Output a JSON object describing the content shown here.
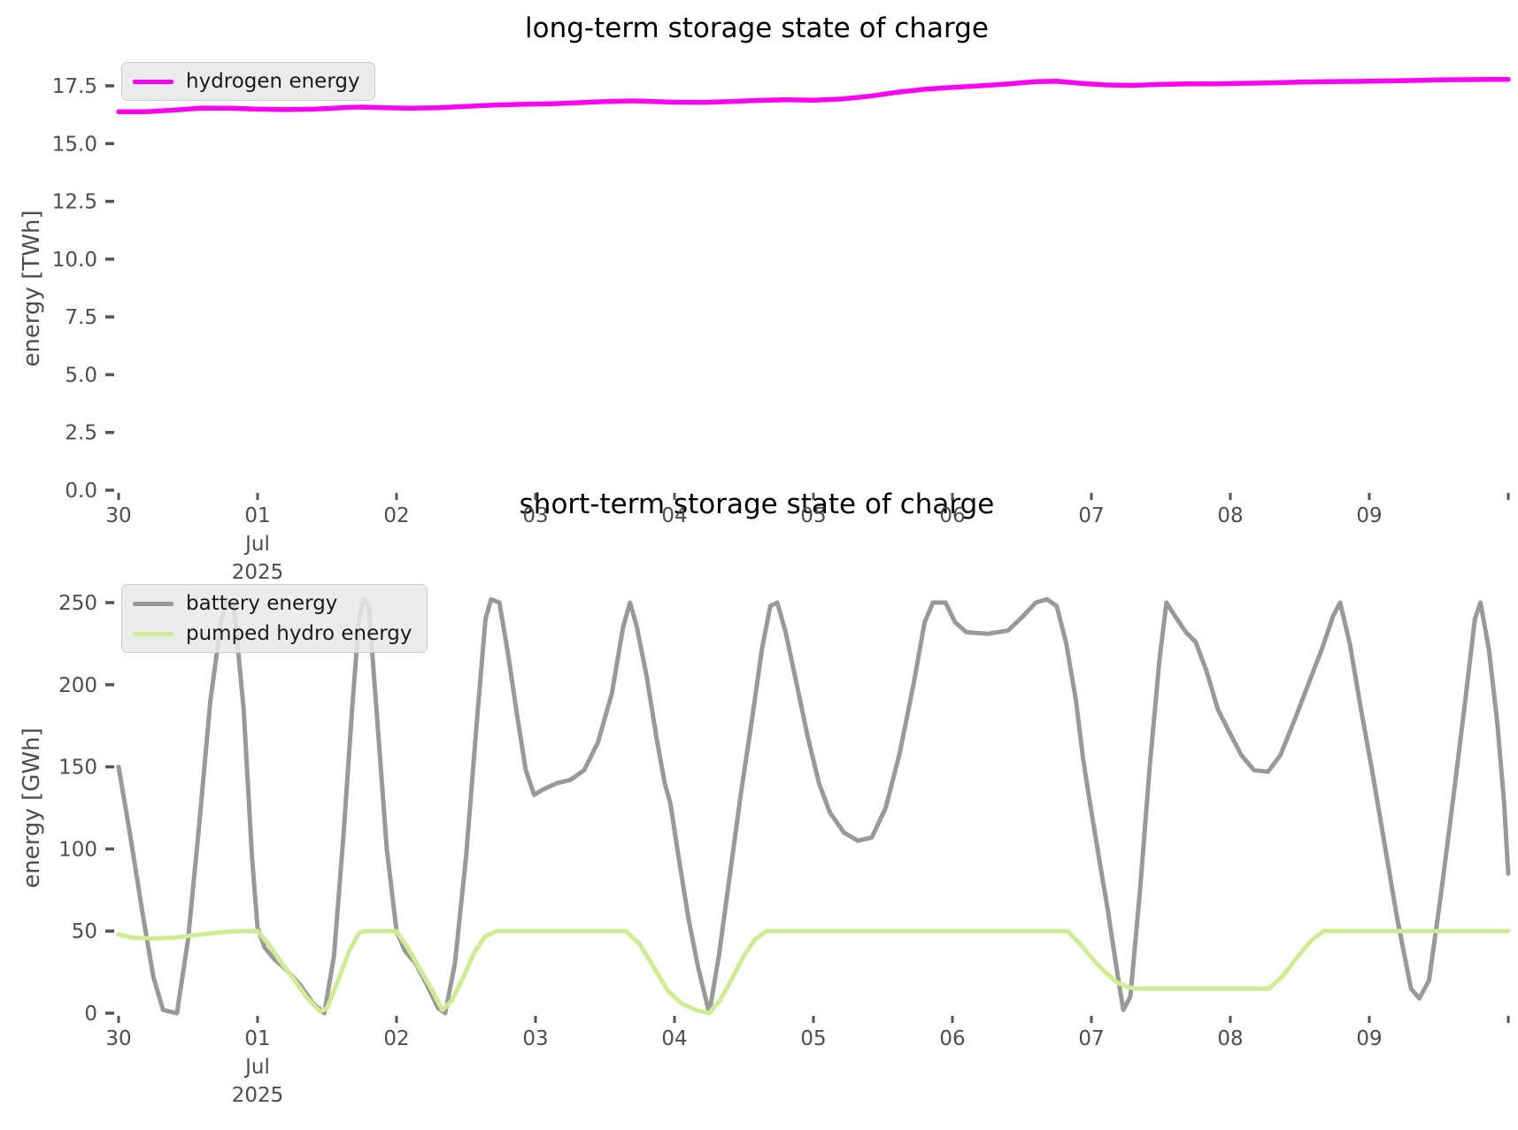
{
  "figure": {
    "background": "#ffffff"
  },
  "x_axis": {
    "tick_labels": [
      "30",
      "01",
      "02",
      "03",
      "04",
      "05",
      "06",
      "07",
      "08",
      "09",
      ""
    ],
    "month_label": "Jul",
    "year_label": "2025",
    "month_under_tick": "01"
  },
  "chart_data": [
    {
      "type": "line",
      "title": "long-term storage state of charge",
      "ylabel": "energy [TWh]",
      "ylim": [
        0.0,
        17.5
      ],
      "y_tick_labels": [
        "0.0",
        "2.5",
        "5.0",
        "7.5",
        "10.0",
        "12.5",
        "15.0",
        "17.5"
      ],
      "y_tick_values": [
        0.0,
        2.5,
        5.0,
        7.5,
        10.0,
        12.5,
        15.0,
        17.5
      ],
      "x_unit": "days since Jun 30 2025",
      "grid": false,
      "legend_position": "upper-left",
      "series": [
        {
          "name": "hydrogen energy",
          "color": "#ff00f2",
          "width": 5.5,
          "points": [
            [
              0,
              16.38
            ],
            [
              0.2,
              16.38
            ],
            [
              0.4,
              16.45
            ],
            [
              0.6,
              16.54
            ],
            [
              0.8,
              16.53
            ],
            [
              1.0,
              16.49
            ],
            [
              1.2,
              16.47
            ],
            [
              1.4,
              16.49
            ],
            [
              1.6,
              16.55
            ],
            [
              1.75,
              16.58
            ],
            [
              1.9,
              16.55
            ],
            [
              2.1,
              16.53
            ],
            [
              2.3,
              16.55
            ],
            [
              2.5,
              16.61
            ],
            [
              2.7,
              16.67
            ],
            [
              2.9,
              16.7
            ],
            [
              3.1,
              16.72
            ],
            [
              3.3,
              16.77
            ],
            [
              3.5,
              16.82
            ],
            [
              3.7,
              16.85
            ],
            [
              3.85,
              16.82
            ],
            [
              4.0,
              16.79
            ],
            [
              4.2,
              16.78
            ],
            [
              4.4,
              16.82
            ],
            [
              4.6,
              16.87
            ],
            [
              4.8,
              16.9
            ],
            [
              5.0,
              16.88
            ],
            [
              5.2,
              16.93
            ],
            [
              5.4,
              17.05
            ],
            [
              5.6,
              17.22
            ],
            [
              5.8,
              17.35
            ],
            [
              6.0,
              17.43
            ],
            [
              6.2,
              17.5
            ],
            [
              6.4,
              17.58
            ],
            [
              6.6,
              17.68
            ],
            [
              6.75,
              17.7
            ],
            [
              6.9,
              17.62
            ],
            [
              7.1,
              17.54
            ],
            [
              7.3,
              17.52
            ],
            [
              7.5,
              17.56
            ],
            [
              7.7,
              17.59
            ],
            [
              7.9,
              17.59
            ],
            [
              8.1,
              17.61
            ],
            [
              8.3,
              17.63
            ],
            [
              8.5,
              17.66
            ],
            [
              8.7,
              17.68
            ],
            [
              8.9,
              17.69
            ],
            [
              9.1,
              17.71
            ],
            [
              9.3,
              17.73
            ],
            [
              9.5,
              17.76
            ],
            [
              9.7,
              17.77
            ],
            [
              9.85,
              17.78
            ],
            [
              10,
              17.78
            ]
          ]
        }
      ]
    },
    {
      "type": "line",
      "title": "short-term storage state of charge",
      "ylabel": "energy [GWh]",
      "ylim": [
        0,
        250
      ],
      "y_tick_labels": [
        "0",
        "50",
        "100",
        "150",
        "200",
        "250"
      ],
      "y_tick_values": [
        0,
        50,
        100,
        150,
        200,
        250
      ],
      "x_unit": "days since Jun 30 2025",
      "grid": false,
      "legend_position": "upper-left",
      "series": [
        {
          "name": "battery energy",
          "color": "#999999",
          "width": 5,
          "points": [
            [
              0,
              150
            ],
            [
              0.08,
              110
            ],
            [
              0.17,
              62
            ],
            [
              0.25,
              22
            ],
            [
              0.32,
              2
            ],
            [
              0.42,
              0
            ],
            [
              0.5,
              45
            ],
            [
              0.58,
              115
            ],
            [
              0.66,
              190
            ],
            [
              0.74,
              240
            ],
            [
              0.78,
              252
            ],
            [
              0.83,
              248
            ],
            [
              0.9,
              185
            ],
            [
              0.96,
              95
            ],
            [
              1.0,
              52
            ],
            [
              1.05,
              40
            ],
            [
              1.12,
              33
            ],
            [
              1.2,
              27
            ],
            [
              1.3,
              18
            ],
            [
              1.4,
              6
            ],
            [
              1.48,
              0
            ],
            [
              1.55,
              35
            ],
            [
              1.62,
              110
            ],
            [
              1.68,
              185
            ],
            [
              1.73,
              240
            ],
            [
              1.76,
              252
            ],
            [
              1.8,
              248
            ],
            [
              1.86,
              180
            ],
            [
              1.93,
              100
            ],
            [
              2.0,
              50
            ],
            [
              2.06,
              38
            ],
            [
              2.14,
              30
            ],
            [
              2.22,
              17
            ],
            [
              2.3,
              3
            ],
            [
              2.35,
              0
            ],
            [
              2.42,
              30
            ],
            [
              2.5,
              95
            ],
            [
              2.58,
              180
            ],
            [
              2.64,
              240
            ],
            [
              2.68,
              252
            ],
            [
              2.74,
              250
            ],
            [
              2.8,
              220
            ],
            [
              2.87,
              180
            ],
            [
              2.93,
              148
            ],
            [
              2.99,
              133
            ],
            [
              3.05,
              136
            ],
            [
              3.15,
              140
            ],
            [
              3.25,
              142
            ],
            [
              3.35,
              148
            ],
            [
              3.45,
              165
            ],
            [
              3.55,
              195
            ],
            [
              3.63,
              235
            ],
            [
              3.68,
              250
            ],
            [
              3.73,
              235
            ],
            [
              3.8,
              205
            ],
            [
              3.87,
              168
            ],
            [
              3.93,
              140
            ],
            [
              3.97,
              128
            ],
            [
              4.03,
              95
            ],
            [
              4.1,
              58
            ],
            [
              4.17,
              28
            ],
            [
              4.25,
              0
            ],
            [
              4.32,
              35
            ],
            [
              4.4,
              85
            ],
            [
              4.48,
              135
            ],
            [
              4.56,
              180
            ],
            [
              4.63,
              222
            ],
            [
              4.69,
              248
            ],
            [
              4.74,
              250
            ],
            [
              4.8,
              232
            ],
            [
              4.88,
              200
            ],
            [
              4.96,
              168
            ],
            [
              5.04,
              140
            ],
            [
              5.12,
              122
            ],
            [
              5.22,
              110
            ],
            [
              5.32,
              105
            ],
            [
              5.42,
              107
            ],
            [
              5.52,
              125
            ],
            [
              5.62,
              158
            ],
            [
              5.72,
              200
            ],
            [
              5.8,
              238
            ],
            [
              5.86,
              250
            ],
            [
              5.95,
              250
            ],
            [
              6.02,
              238
            ],
            [
              6.1,
              232
            ],
            [
              6.25,
              231
            ],
            [
              6.4,
              233
            ],
            [
              6.5,
              241
            ],
            [
              6.6,
              250
            ],
            [
              6.68,
              252
            ],
            [
              6.75,
              248
            ],
            [
              6.82,
              225
            ],
            [
              6.89,
              190
            ],
            [
              6.94,
              155
            ],
            [
              6.99,
              128
            ],
            [
              7.06,
              92
            ],
            [
              7.12,
              62
            ],
            [
              7.18,
              28
            ],
            [
              7.23,
              2
            ],
            [
              7.28,
              10
            ],
            [
              7.35,
              75
            ],
            [
              7.42,
              150
            ],
            [
              7.49,
              215
            ],
            [
              7.54,
              250
            ],
            [
              7.6,
              242
            ],
            [
              7.68,
              232
            ],
            [
              7.75,
              226
            ],
            [
              7.83,
              208
            ],
            [
              7.91,
              185
            ],
            [
              8.0,
              170
            ],
            [
              8.08,
              157
            ],
            [
              8.17,
              148
            ],
            [
              8.27,
              147
            ],
            [
              8.36,
              157
            ],
            [
              8.46,
              178
            ],
            [
              8.56,
              200
            ],
            [
              8.66,
              222
            ],
            [
              8.74,
              242
            ],
            [
              8.79,
              250
            ],
            [
              8.86,
              225
            ],
            [
              8.94,
              185
            ],
            [
              9.02,
              148
            ],
            [
              9.1,
              108
            ],
            [
              9.2,
              58
            ],
            [
              9.3,
              15
            ],
            [
              9.36,
              9
            ],
            [
              9.43,
              20
            ],
            [
              9.52,
              75
            ],
            [
              9.61,
              135
            ],
            [
              9.69,
              190
            ],
            [
              9.76,
              240
            ],
            [
              9.8,
              250
            ],
            [
              9.86,
              222
            ],
            [
              9.92,
              178
            ],
            [
              9.97,
              128
            ],
            [
              10,
              85
            ]
          ]
        },
        {
          "name": "pumped hydro energy",
          "color": "#cfec92",
          "width": 5,
          "points": [
            [
              0,
              48
            ],
            [
              0.1,
              46
            ],
            [
              0.25,
              45.5
            ],
            [
              0.4,
              46
            ],
            [
              0.55,
              47.5
            ],
            [
              0.7,
              49
            ],
            [
              0.85,
              50
            ],
            [
              1.0,
              50
            ],
            [
              1.08,
              42
            ],
            [
              1.16,
              32
            ],
            [
              1.25,
              22
            ],
            [
              1.35,
              10
            ],
            [
              1.45,
              1
            ],
            [
              1.5,
              3
            ],
            [
              1.58,
              20
            ],
            [
              1.66,
              38
            ],
            [
              1.73,
              49
            ],
            [
              1.78,
              50
            ],
            [
              2.0,
              50
            ],
            [
              2.08,
              40
            ],
            [
              2.16,
              28
            ],
            [
              2.25,
              15
            ],
            [
              2.33,
              2
            ],
            [
              2.4,
              8
            ],
            [
              2.48,
              22
            ],
            [
              2.56,
              37
            ],
            [
              2.64,
              47
            ],
            [
              2.72,
              50
            ],
            [
              3.65,
              50
            ],
            [
              3.75,
              42
            ],
            [
              3.85,
              28
            ],
            [
              3.95,
              14
            ],
            [
              4.05,
              6
            ],
            [
              4.15,
              2
            ],
            [
              4.25,
              0
            ],
            [
              4.33,
              8
            ],
            [
              4.42,
              22
            ],
            [
              4.5,
              35
            ],
            [
              4.58,
              45
            ],
            [
              4.66,
              50
            ],
            [
              6.83,
              50
            ],
            [
              6.92,
              42
            ],
            [
              6.98,
              36
            ],
            [
              7.03,
              31
            ],
            [
              7.1,
              25
            ],
            [
              7.18,
              19
            ],
            [
              7.26,
              16
            ],
            [
              7.32,
              15
            ],
            [
              8.28,
              15
            ],
            [
              8.38,
              23
            ],
            [
              8.48,
              34
            ],
            [
              8.58,
              44
            ],
            [
              8.67,
              50
            ],
            [
              10,
              50
            ]
          ]
        }
      ]
    }
  ]
}
